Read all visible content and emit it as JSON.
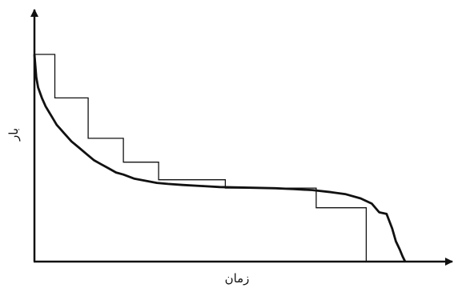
{
  "chart_data": {
    "type": "line",
    "title": "",
    "xlabel": "زمان",
    "ylabel": "بار",
    "xlim": [
      0,
      100
    ],
    "ylim": [
      0,
      100
    ],
    "grid": false,
    "legend": "none",
    "series": [
      {
        "kind": "curve",
        "x": [
          0,
          0.5,
          1,
          2,
          3,
          4,
          5,
          6,
          7,
          8,
          10,
          12,
          14,
          16,
          18,
          20,
          22,
          24,
          27,
          30,
          33,
          36,
          40,
          45,
          50,
          55,
          60,
          65,
          70,
          75,
          80,
          84,
          88,
          91,
          93,
          95,
          96.5,
          97.5,
          98.5,
          99.3,
          100
        ],
        "y": [
          100,
          89,
          84,
          79,
          75,
          72,
          69,
          66,
          64,
          62,
          58,
          55,
          52,
          49,
          47,
          45,
          43,
          42,
          40,
          39,
          38,
          37.5,
          37,
          36.5,
          36,
          35.8,
          35.6,
          35.4,
          35,
          34.5,
          33.5,
          32.5,
          30.5,
          28,
          23.8,
          23,
          16,
          9.8,
          6,
          2.5,
          0
        ]
      },
      {
        "kind": "step",
        "x": [
          0,
          5.5,
          5.5,
          14.5,
          14.5,
          24,
          24,
          33.5,
          33.5,
          51.5,
          51.5,
          76,
          76,
          89.5,
          89.5,
          100
        ],
        "y": [
          100,
          100,
          79,
          79,
          59.5,
          59.5,
          48,
          48,
          39.5,
          39.5,
          35.5,
          35.5,
          26,
          26,
          0,
          0
        ]
      }
    ]
  }
}
